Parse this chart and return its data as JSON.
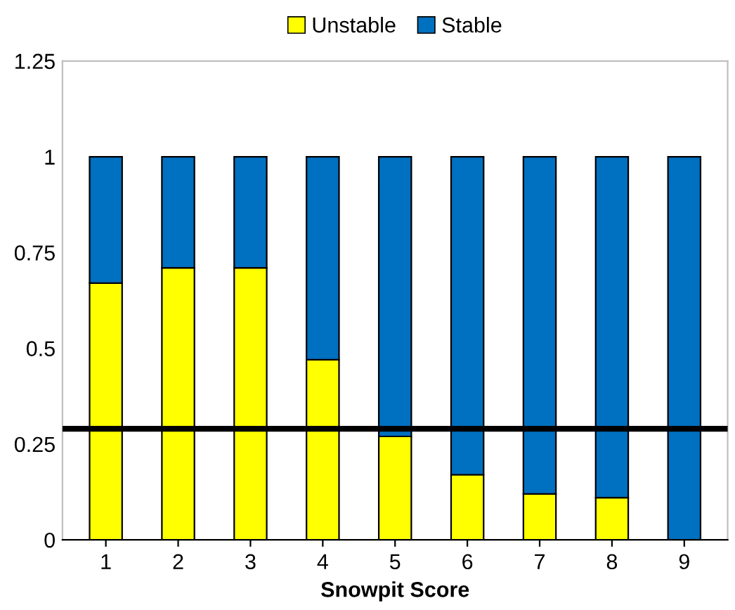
{
  "chart_data": {
    "type": "bar",
    "stacked": true,
    "xlabel": "Snowpit Score",
    "categories": [
      "1",
      "2",
      "3",
      "4",
      "5",
      "6",
      "7",
      "8",
      "9"
    ],
    "series": [
      {
        "name": "Unstable",
        "color": "#ffff00",
        "values": [
          0.67,
          0.71,
          0.71,
          0.47,
          0.27,
          0.17,
          0.12,
          0.11,
          0
        ]
      },
      {
        "name": "Stable",
        "color": "#0070c0",
        "values": [
          0.33,
          0.29,
          0.29,
          0.53,
          0.73,
          0.83,
          0.88,
          0.89,
          1
        ]
      }
    ],
    "ylim": [
      0,
      1.25
    ],
    "yticks": [
      0,
      0.25,
      0.5,
      0.75,
      1,
      1.25
    ],
    "ref_lines": [
      {
        "axis": "y",
        "value": 0.29,
        "color": "#000000"
      }
    ],
    "legend": "top",
    "grid": false
  }
}
